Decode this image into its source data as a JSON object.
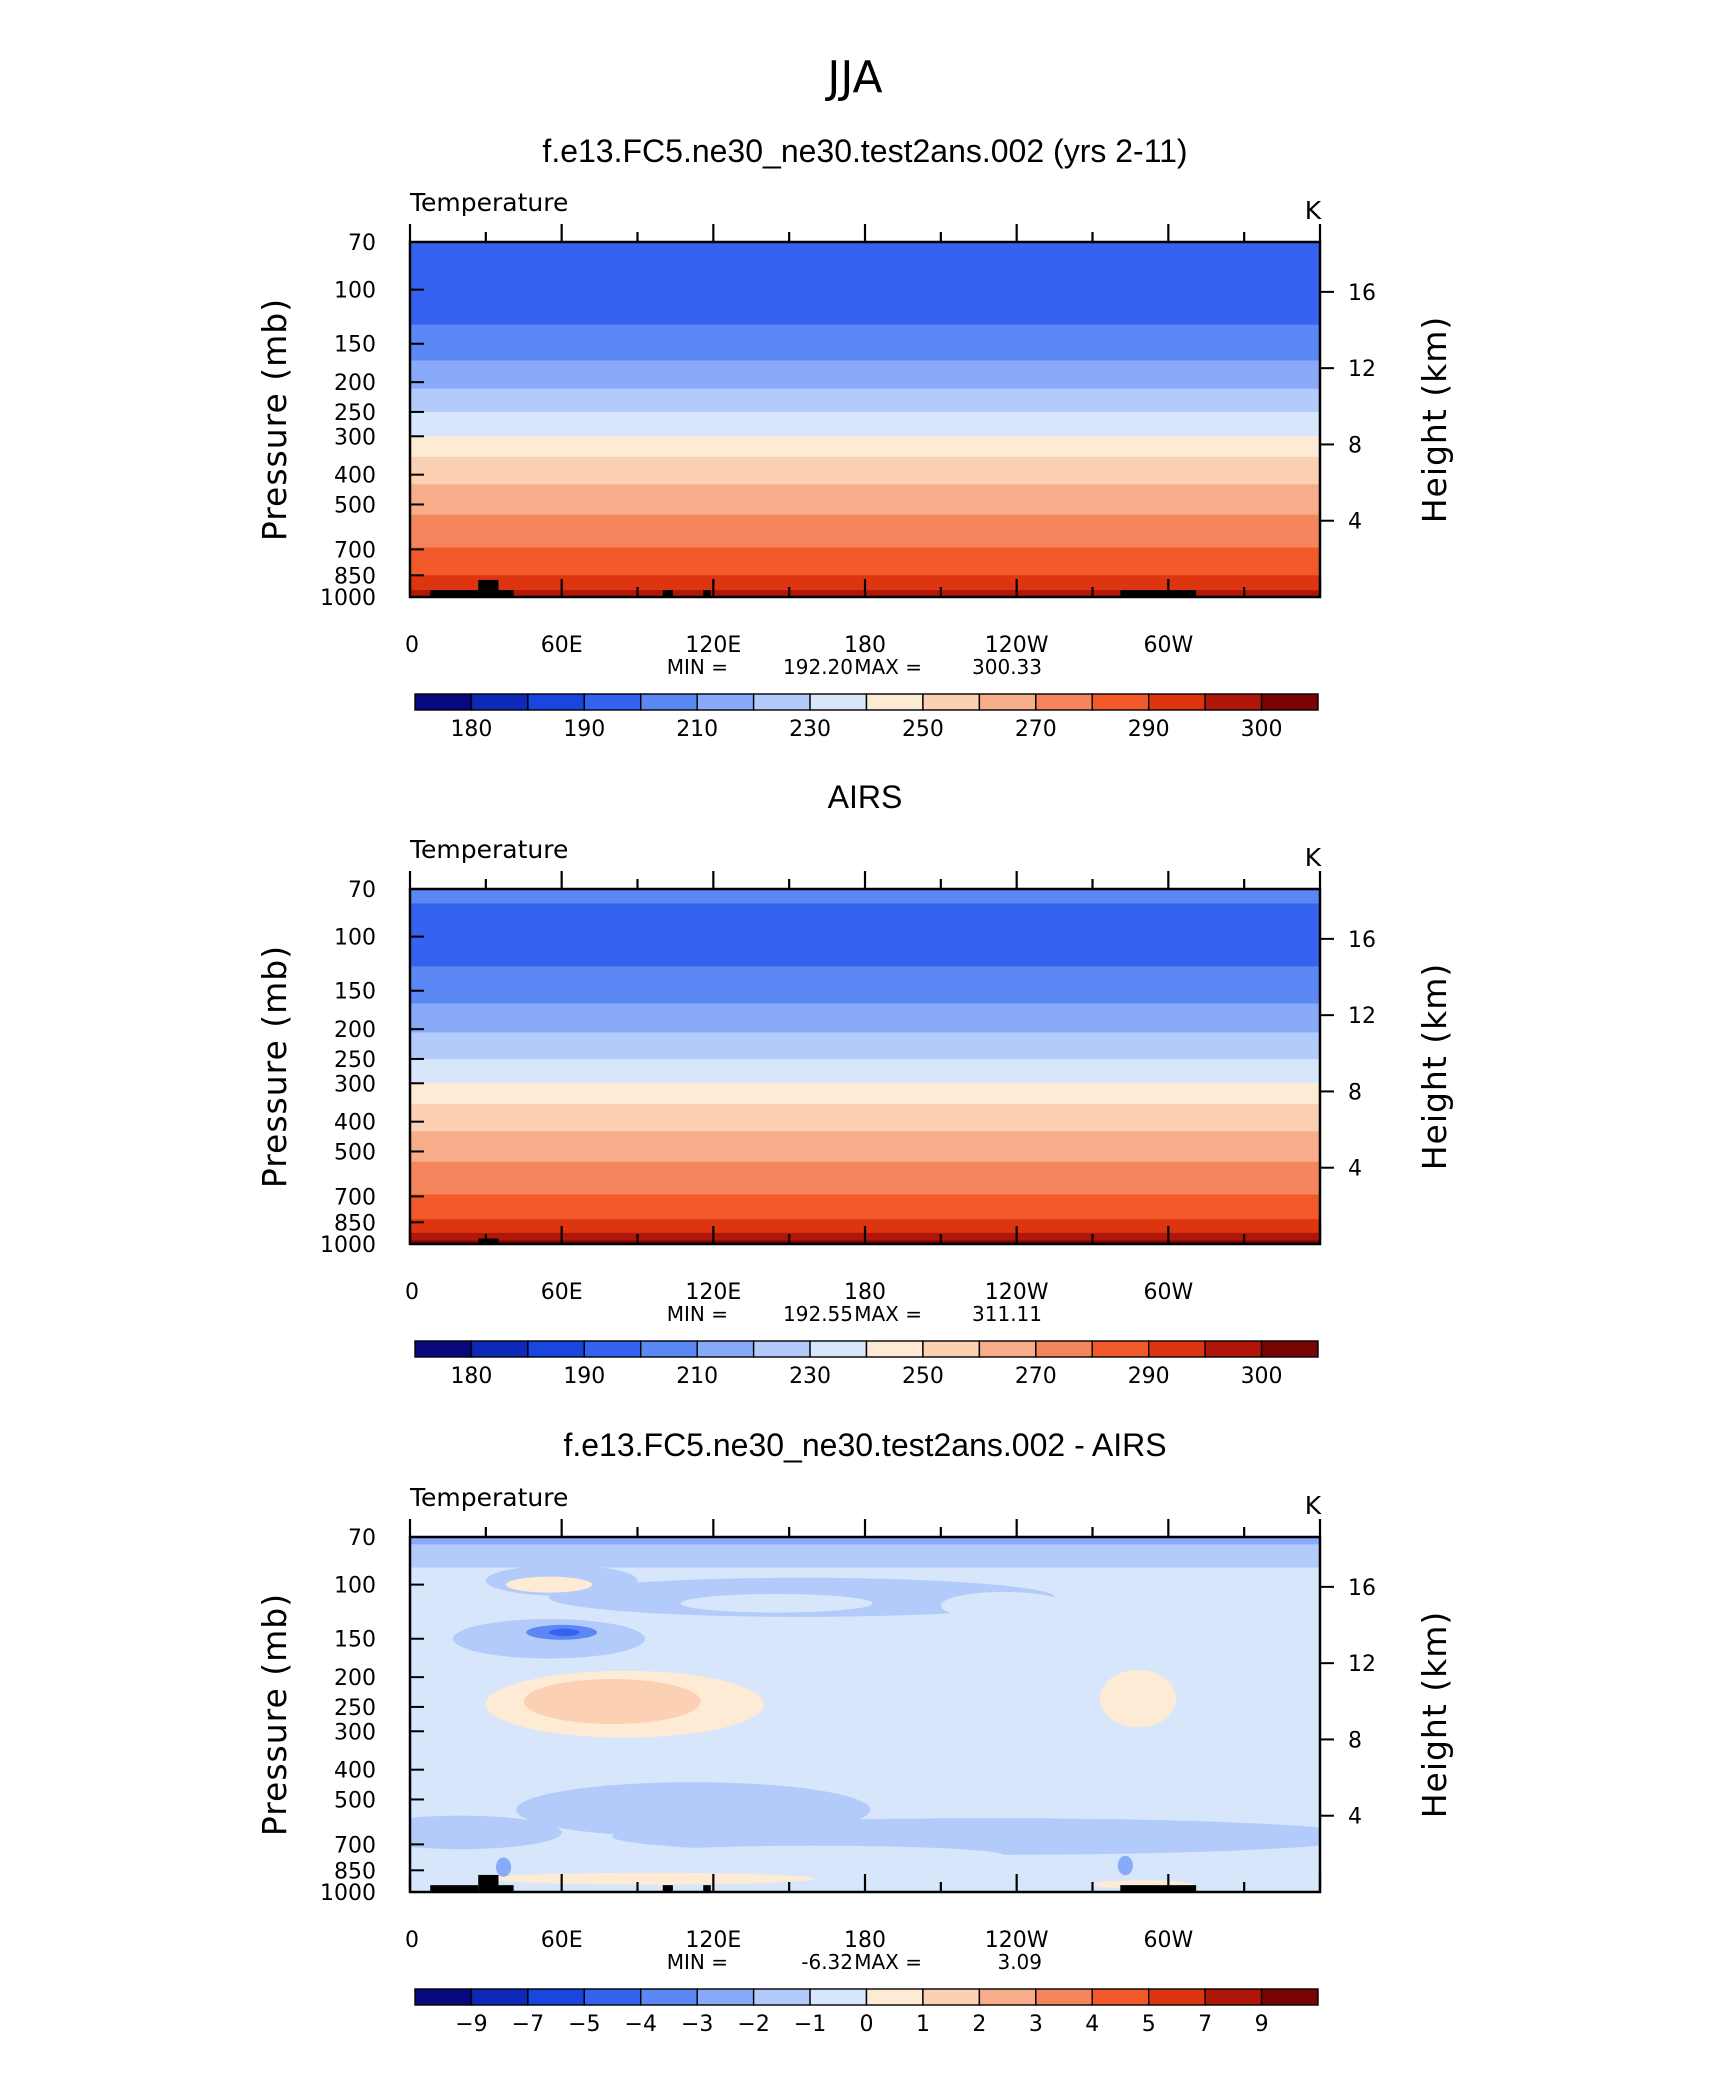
{
  "figure_title": "JJA",
  "chart_data": [
    {
      "type": "heatmap",
      "title": "f.e13.FC5.ne30_ne30.test2ans.002 (yrs 2-11)",
      "variable": "Temperature",
      "units": "K",
      "ylabel": "Pressure (mb)",
      "ylabel_right": "Height (km)",
      "xticks": [
        "0",
        "60E",
        "120E",
        "180",
        "120W",
        "60W"
      ],
      "yticks": [
        "70",
        "100",
        "150",
        "200",
        "250",
        "300",
        "400",
        "500",
        "700",
        "850",
        "1000"
      ],
      "ylim": [
        1000,
        70
      ],
      "right_ticks": [
        "16",
        "12",
        "8",
        "4"
      ],
      "min_label": "MIN =",
      "min_value": "192.20",
      "max_label": "MAX =",
      "max_value": "300.33",
      "colorbar": {
        "labels": [
          "180",
          "190",
          "210",
          "230",
          "250",
          "270",
          "290",
          "300"
        ],
        "colors": [
          "#08087e",
          "#0c29b8",
          "#1846de",
          "#3662f0",
          "#5b88f5",
          "#88aaf8",
          "#b3cbfa",
          "#d7e6fb",
          "#fdebd6",
          "#fbd0b3",
          "#f8ad8a",
          "#f5855d",
          "#f25a2c",
          "#dc3510",
          "#b01609",
          "#7a0303"
        ]
      },
      "profile_levels": [
        {
          "p": 70,
          "band": 3
        },
        {
          "p": 112,
          "band": 3
        },
        {
          "p": 130,
          "band": 4
        },
        {
          "p": 170,
          "band": 5
        },
        {
          "p": 210,
          "band": 6
        },
        {
          "p": 250,
          "band": 7
        },
        {
          "p": 300,
          "band": 8
        },
        {
          "p": 350,
          "band": 9
        },
        {
          "p": 430,
          "band": 10
        },
        {
          "p": 540,
          "band": 11
        },
        {
          "p": 690,
          "band": 12
        },
        {
          "p": 850,
          "band": 13
        },
        {
          "p": 950,
          "band": 14
        },
        {
          "p": 1000,
          "band": 14
        }
      ],
      "topography": [
        {
          "lon0": 8,
          "lon1": 27,
          "p": 950
        },
        {
          "lon0": 27,
          "lon1": 35,
          "p": 880
        },
        {
          "lon0": 35,
          "lon1": 41,
          "p": 950
        },
        {
          "lon0": 100,
          "lon1": 104,
          "p": 950
        },
        {
          "lon0": 116,
          "lon1": 119,
          "p": 950
        },
        {
          "lon0": 281,
          "lon1": 311,
          "p": 950
        }
      ]
    },
    {
      "type": "heatmap",
      "title": "AIRS",
      "variable": "Temperature",
      "units": "K",
      "ylabel": "Pressure (mb)",
      "ylabel_right": "Height (km)",
      "xticks": [
        "0",
        "60E",
        "120E",
        "180",
        "120W",
        "60W"
      ],
      "yticks": [
        "70",
        "100",
        "150",
        "200",
        "250",
        "300",
        "400",
        "500",
        "700",
        "850",
        "1000"
      ],
      "ylim": [
        1000,
        70
      ],
      "right_ticks": [
        "16",
        "12",
        "8",
        "4"
      ],
      "min_label": "MIN =",
      "min_value": "192.55",
      "max_label": "MAX =",
      "max_value": "311.11",
      "colorbar": {
        "labels": [
          "180",
          "190",
          "210",
          "230",
          "250",
          "270",
          "290",
          "300"
        ],
        "colors": [
          "#08087e",
          "#0c29b8",
          "#1846de",
          "#3662f0",
          "#5b88f5",
          "#88aaf8",
          "#b3cbfa",
          "#d7e6fb",
          "#fdebd6",
          "#fbd0b3",
          "#f8ad8a",
          "#f5855d",
          "#f25a2c",
          "#dc3510",
          "#b01609",
          "#7a0303"
        ]
      },
      "profile_levels": [
        {
          "p": 70,
          "band": 4
        },
        {
          "p": 78,
          "band": 3
        },
        {
          "p": 125,
          "band": 4
        },
        {
          "p": 165,
          "band": 5
        },
        {
          "p": 205,
          "band": 6
        },
        {
          "p": 250,
          "band": 7
        },
        {
          "p": 300,
          "band": 8
        },
        {
          "p": 350,
          "band": 9
        },
        {
          "p": 430,
          "band": 10
        },
        {
          "p": 540,
          "band": 11
        },
        {
          "p": 690,
          "band": 12
        },
        {
          "p": 830,
          "band": 13
        },
        {
          "p": 920,
          "band": 14
        },
        {
          "p": 975,
          "band": 15
        },
        {
          "p": 1000,
          "band": 15
        }
      ],
      "topography": [
        {
          "lon0": 27,
          "lon1": 35,
          "p": 960
        }
      ]
    },
    {
      "type": "heatmap",
      "title": "f.e13.FC5.ne30_ne30.test2ans.002 - AIRS",
      "variable": "Temperature",
      "units": "K",
      "ylabel": "Pressure (mb)",
      "ylabel_right": "Height (km)",
      "xticks": [
        "0",
        "60E",
        "120E",
        "180",
        "120W",
        "60W"
      ],
      "yticks": [
        "70",
        "100",
        "150",
        "200",
        "250",
        "300",
        "400",
        "500",
        "700",
        "850",
        "1000"
      ],
      "ylim": [
        1000,
        70
      ],
      "right_ticks": [
        "16",
        "12",
        "8",
        "4"
      ],
      "min_label": "MIN =",
      "min_value": "-6.32",
      "max_label": "MAX =",
      "max_value": "3.09",
      "colorbar": {
        "labels": [
          "−9",
          "−7",
          "−5",
          "−4",
          "−3",
          "−2",
          "−1",
          "0",
          "1",
          "2",
          "3",
          "4",
          "5",
          "7",
          "9"
        ],
        "colors": [
          "#08087e",
          "#0c29b8",
          "#1846de",
          "#3662f0",
          "#5b88f5",
          "#88aaf8",
          "#b3cbfa",
          "#d7e6fb",
          "#fdebd6",
          "#fbd0b3",
          "#f8ad8a",
          "#f5855d",
          "#f25a2c",
          "#dc3510",
          "#b01609",
          "#7a0303"
        ]
      },
      "background_band": 7,
      "features": [
        {
          "band": 5,
          "shape": "band",
          "lon0": 0,
          "lon1": 360,
          "p0": 70,
          "p1": 74
        },
        {
          "band": 6,
          "shape": "band",
          "lon0": 0,
          "lon1": 360,
          "p0": 74,
          "p1": 88
        },
        {
          "band": 6,
          "shape": "ellipse",
          "lon": 55,
          "p": 150,
          "dlon": 38,
          "dp": 22
        },
        {
          "band": 6,
          "shape": "ellipse",
          "lon": 60,
          "p": 97,
          "dlon": 30,
          "dp": 11
        },
        {
          "band": 6,
          "shape": "ellipse",
          "lon": 155,
          "p": 110,
          "dlon": 100,
          "dp": 16
        },
        {
          "band": 6,
          "shape": "ellipse",
          "lon": 112,
          "p": 540,
          "dlon": 70,
          "dp": 110
        },
        {
          "band": 6,
          "shape": "ellipse",
          "lon": 230,
          "p": 660,
          "dlon": 150,
          "dp": 90
        },
        {
          "band": 6,
          "shape": "ellipse",
          "lon": 20,
          "p": 640,
          "dlon": 40,
          "dp": 80
        },
        {
          "band": 7,
          "shape": "ellipse",
          "lon": 145,
          "p": 115,
          "dlon": 38,
          "dp": 8
        },
        {
          "band": 7,
          "shape": "ellipse",
          "lon": 235,
          "p": 117,
          "dlon": 25,
          "dp": 12
        },
        {
          "band": 7,
          "shape": "ellipse",
          "lon": 160,
          "p": 760,
          "dlon": 75,
          "dp": 55
        },
        {
          "band": 8,
          "shape": "ellipse",
          "lon": 55,
          "p": 100,
          "dlon": 17,
          "dp": 6
        },
        {
          "band": 4,
          "shape": "ellipse",
          "lon": 60,
          "p": 143,
          "dlon": 14,
          "dp": 8
        },
        {
          "band": 3,
          "shape": "ellipse",
          "lon": 61,
          "p": 143,
          "dlon": 6,
          "dp": 4
        },
        {
          "band": 8,
          "shape": "ellipse",
          "lon": 85,
          "p": 245,
          "dlon": 55,
          "dp": 60
        },
        {
          "band": 9,
          "shape": "ellipse",
          "lon": 80,
          "p": 240,
          "dlon": 35,
          "dp": 40
        },
        {
          "band": 8,
          "shape": "ellipse",
          "lon": 288,
          "p": 235,
          "dlon": 15,
          "dp": 50
        },
        {
          "band": 8,
          "shape": "ellipse",
          "lon": 95,
          "p": 905,
          "dlon": 65,
          "dp": 40
        },
        {
          "band": 8,
          "shape": "ellipse",
          "lon": 290,
          "p": 945,
          "dlon": 20,
          "dp": 30
        },
        {
          "band": 5,
          "shape": "ellipse",
          "lon": 37,
          "p": 830,
          "dlon": 3,
          "dp": 60
        },
        {
          "band": 5,
          "shape": "ellipse",
          "lon": 283,
          "p": 820,
          "dlon": 3,
          "dp": 60
        }
      ],
      "topography": [
        {
          "lon0": 8,
          "lon1": 27,
          "p": 950
        },
        {
          "lon0": 27,
          "lon1": 35,
          "p": 880
        },
        {
          "lon0": 35,
          "lon1": 41,
          "p": 950
        },
        {
          "lon0": 100,
          "lon1": 104,
          "p": 950
        },
        {
          "lon0": 116,
          "lon1": 119,
          "p": 950
        },
        {
          "lon0": 281,
          "lon1": 311,
          "p": 950
        }
      ]
    }
  ]
}
